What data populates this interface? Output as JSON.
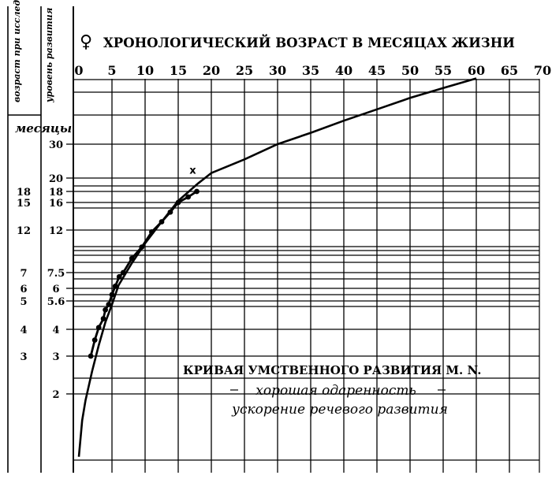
{
  "chart_data": {
    "type": "line",
    "title": "ХРОНОЛОГИЧЕСКИЙ ВОЗРАСТ В МЕСЯЦАХ ЖИЗНИ",
    "title_symbol": "♀",
    "left_col1_header": "возраст при исследовании",
    "left_col2_header": "уровень развития",
    "months_label": "месяцы",
    "x_ticks": [
      "0",
      "5",
      "10",
      "15",
      "20",
      "25",
      "30",
      "35",
      "40",
      "45",
      "50",
      "55",
      "60",
      "65",
      "70"
    ],
    "xlim": [
      0,
      70
    ],
    "col2_labels": [
      {
        "text": "30",
        "level": 30
      },
      {
        "text": "20",
        "level": 20
      },
      {
        "text": "18",
        "level": 18
      },
      {
        "text": "16",
        "level": 16
      },
      {
        "text": "12",
        "level": 12
      },
      {
        "text": "7.5",
        "level": 7.5
      },
      {
        "text": "6",
        "level": 6
      },
      {
        "text": "5.6",
        "level": 5.6
      },
      {
        "text": "4",
        "level": 4
      },
      {
        "text": "3",
        "level": 3
      },
      {
        "text": "2",
        "level": 2
      }
    ],
    "col1_labels": [
      {
        "text": "18",
        "level": 18
      },
      {
        "text": "15",
        "level": 16
      },
      {
        "text": "12",
        "level": 12
      },
      {
        "text": "7",
        "level": 7.5
      },
      {
        "text": "6",
        "level": 6
      },
      {
        "text": "5",
        "level": 5.6
      },
      {
        "text": "4",
        "level": 4
      },
      {
        "text": "3",
        "level": 3
      }
    ],
    "series": [
      {
        "kind": "curve",
        "x": [
          0,
          0.5,
          1,
          2,
          3,
          4,
          5,
          6,
          8,
          10,
          12,
          15,
          18,
          20,
          25,
          30,
          35,
          40,
          45,
          50,
          55,
          60
        ],
        "y": [
          0.1,
          1.2,
          1.8,
          2.6,
          3.4,
          4.4,
          5.4,
          6.3,
          8.5,
          10.6,
          12.6,
          16.3,
          19.2,
          21.5,
          25.5,
          30.0,
          34.5,
          39.3,
          44.2,
          49.2,
          54.5,
          59.8
        ]
      },
      {
        "kind": "observations",
        "x": [
          1.8,
          2.4,
          3.0,
          3.7,
          4.0,
          4.5,
          5.0,
          5.5,
          6.1,
          6.7,
          8.0,
          9.5,
          11.0,
          12.5,
          13.8,
          15.0,
          16.5,
          17.8
        ],
        "y": [
          3.0,
          3.6,
          4.1,
          4.6,
          5.1,
          5.4,
          5.8,
          6.2,
          7.1,
          7.5,
          9.0,
          10.2,
          11.8,
          13.2,
          14.6,
          16.0,
          17.0,
          18.0
        ]
      }
    ],
    "marker_x": {
      "text": "x",
      "x": 17.2,
      "y": 21.3
    },
    "annotations": [
      "КРИВАЯ УМСТВЕННОГО РАЗВИТИЯ M. N.",
      "хорошая одаренность",
      "ускорение речевого развития"
    ]
  }
}
